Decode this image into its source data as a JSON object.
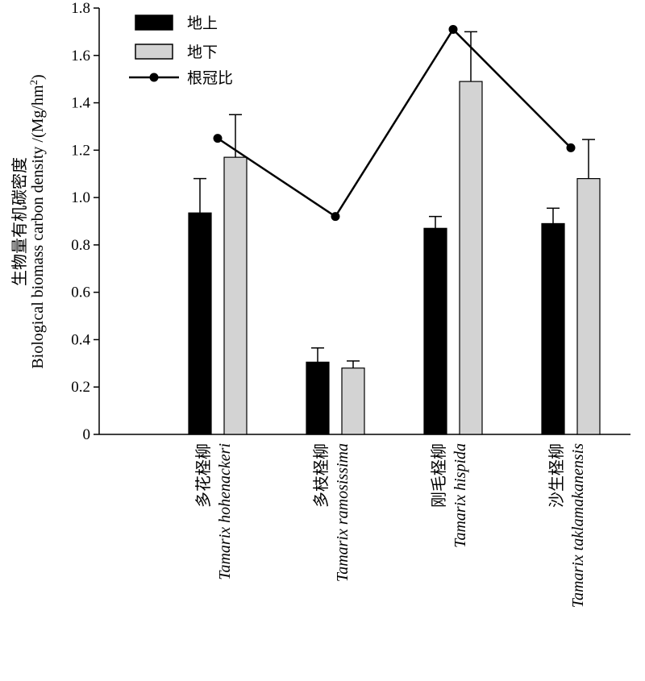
{
  "chart_data": {
    "type": "bar",
    "categories": [
      {
        "name_cn": "多花柽柳",
        "name_latin": "Tamarix hohenackeri"
      },
      {
        "name_cn": "多枝柽柳",
        "name_latin": "Tamarix ramosissima"
      },
      {
        "name_cn": "刚毛柽柳",
        "name_latin": "Tamarix hispida"
      },
      {
        "name_cn": "沙生柽柳",
        "name_latin": "Tamarix taklamakanensis"
      }
    ],
    "series": [
      {
        "name": "地上",
        "kind": "bar",
        "color": "#000000",
        "values": [
          0.935,
          0.305,
          0.87,
          0.89
        ],
        "errors": [
          0.145,
          0.06,
          0.05,
          0.065
        ]
      },
      {
        "name": "地下",
        "kind": "bar",
        "color": "#d3d3d3",
        "values": [
          1.17,
          0.28,
          1.49,
          1.08
        ],
        "errors": [
          0.18,
          0.03,
          0.21,
          0.165
        ]
      },
      {
        "name": "根冠比",
        "kind": "line",
        "color": "#000000",
        "values": [
          1.25,
          0.92,
          1.71,
          1.21
        ]
      }
    ],
    "ylabel_line1": "生物量有机碳密度",
    "ylabel_line2_prefix": "Biological biomass carbon density /(Mg/hm",
    "ylabel_sup": "2",
    "ylabel_line2_suffix": ")",
    "ylim": [
      0,
      1.8
    ],
    "yticks": [
      "0",
      "0.2",
      "0.4",
      "0.6",
      "0.8",
      "1.0",
      "1.2",
      "1.4",
      "1.6",
      "1.8"
    ],
    "legend_position": "top-left",
    "grid": false
  }
}
